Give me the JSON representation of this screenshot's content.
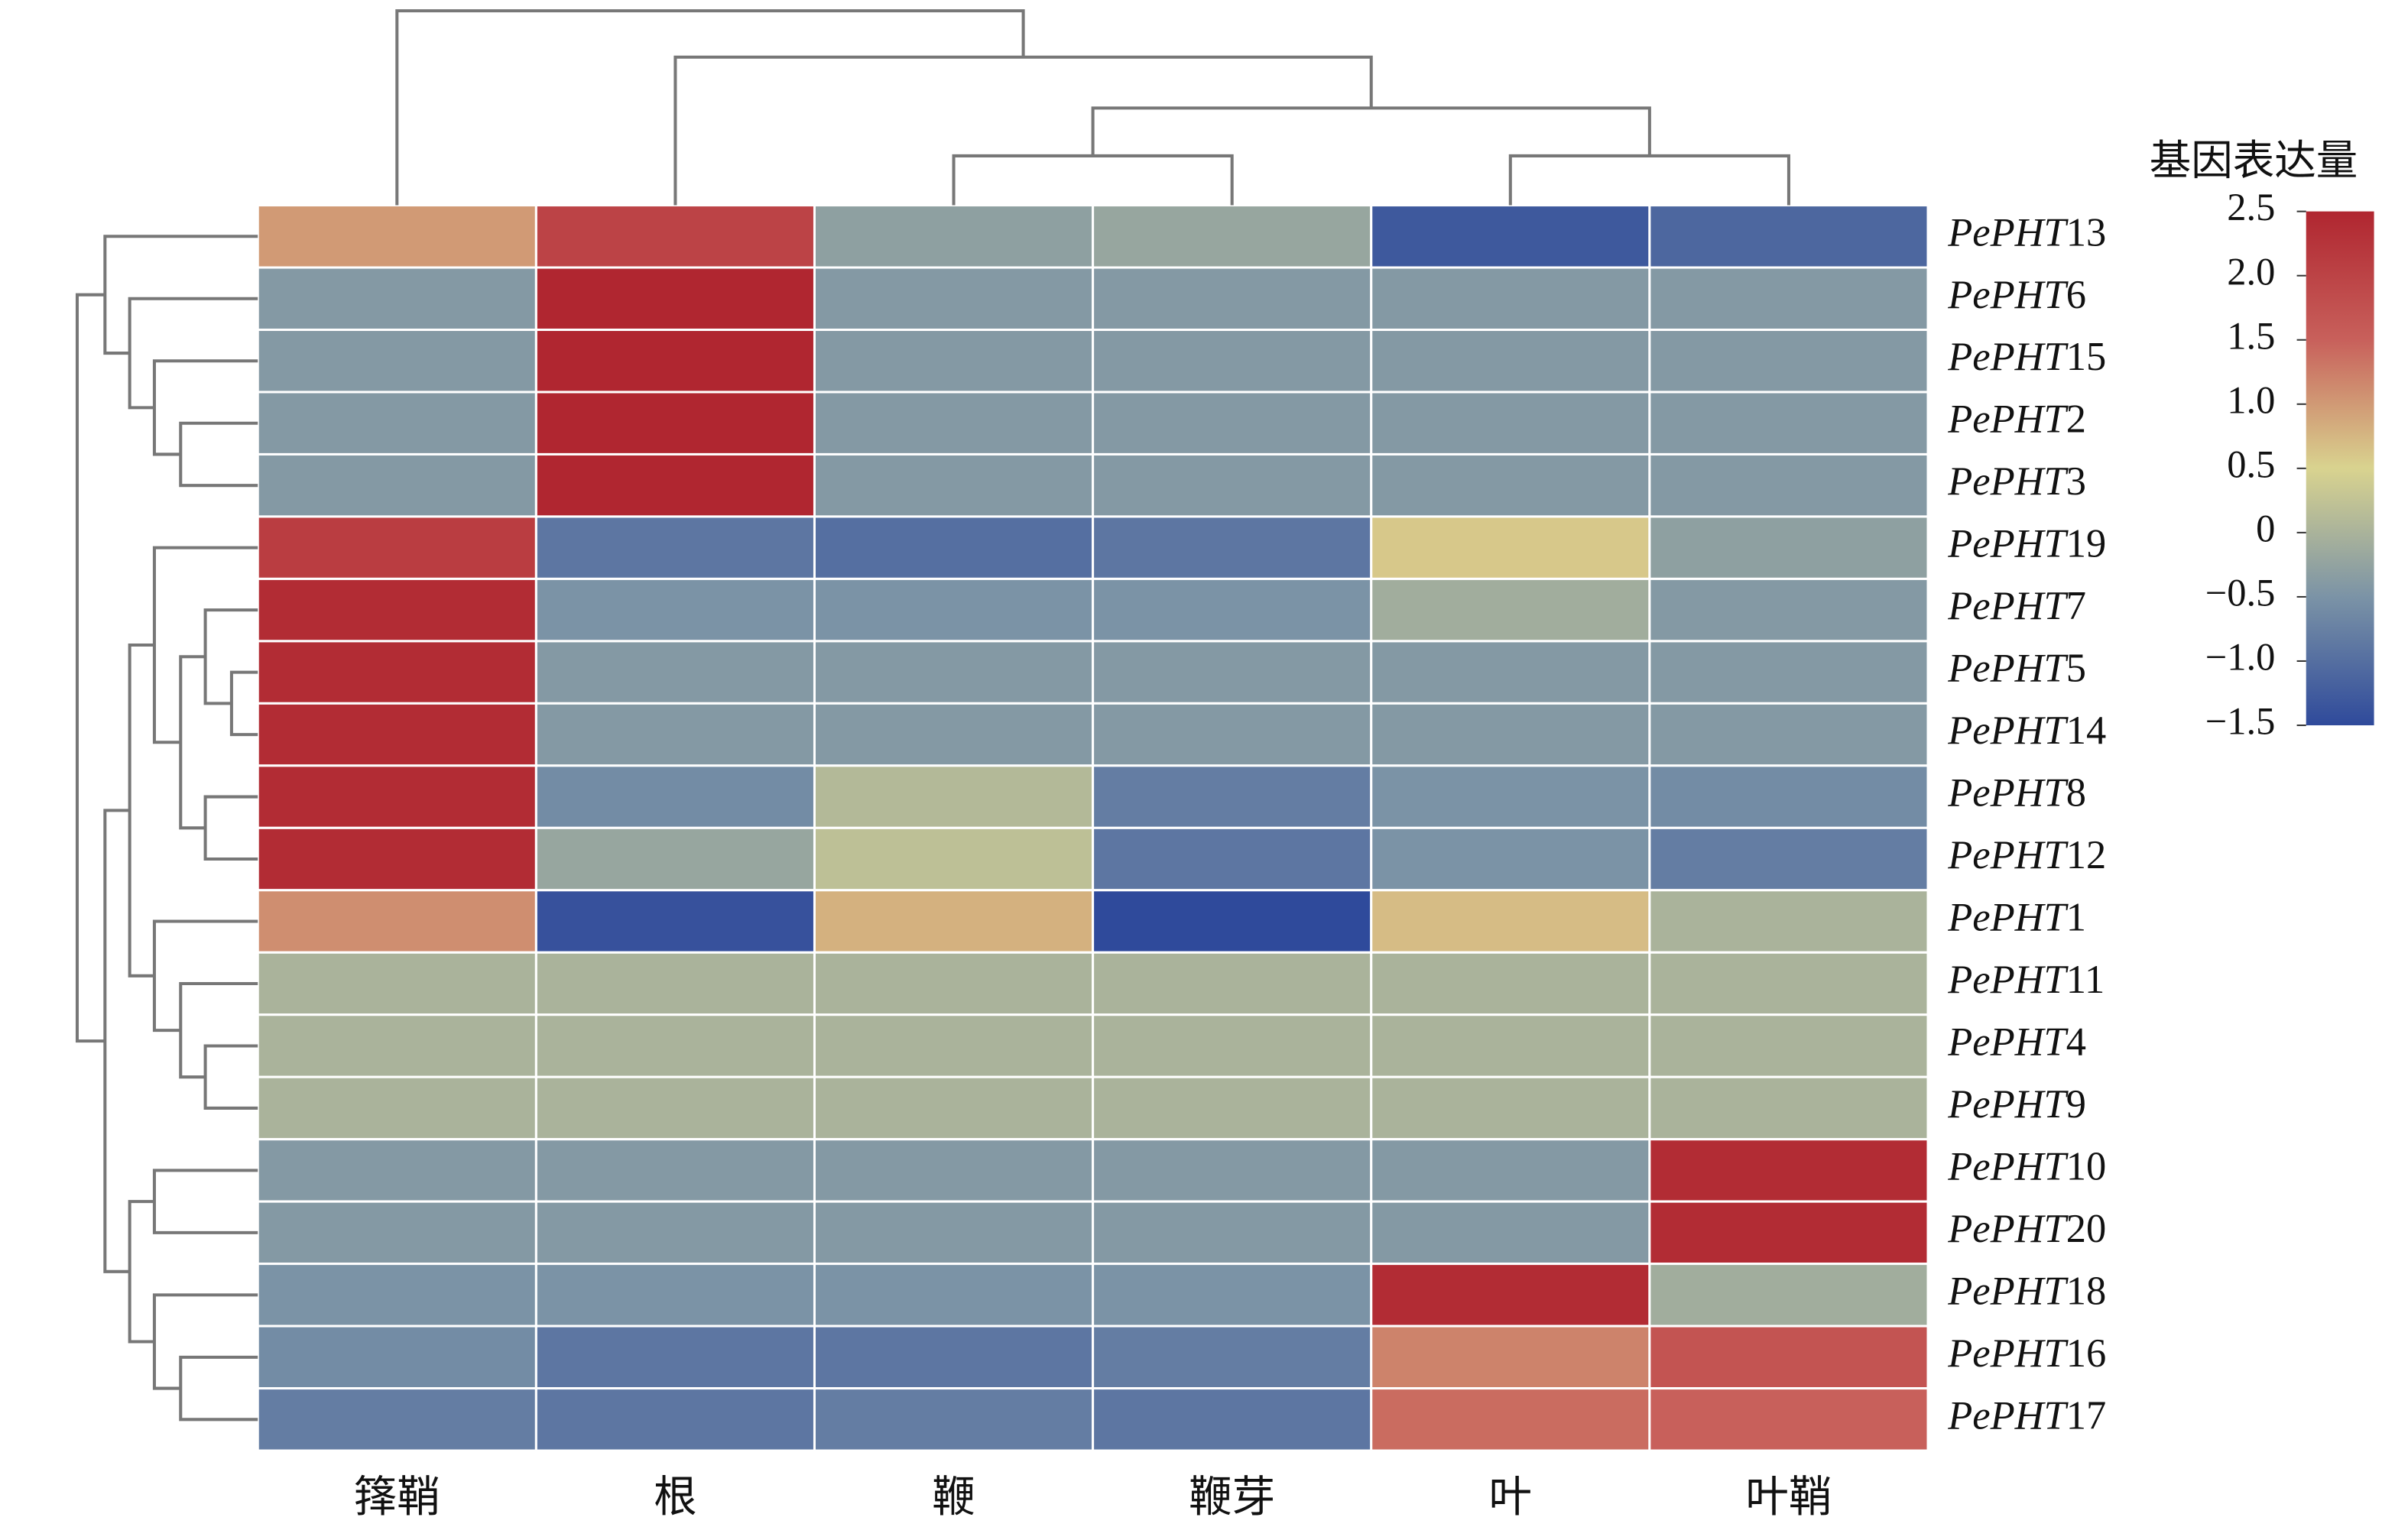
{
  "chart_data": {
    "type": "heatmap",
    "categories": [
      "箨鞘",
      "根",
      "鞭",
      "鞭芽",
      "叶",
      "叶鞘"
    ],
    "rows": [
      "PePHT13",
      "PePHT6",
      "PePHT15",
      "PePHT2",
      "PePHT3",
      "PePHT19",
      "PePHT7",
      "PePHT5",
      "PePHT14",
      "PePHT8",
      "PePHT12",
      "PePHT1",
      "PePHT11",
      "PePHT4",
      "PePHT9",
      "PePHT10",
      "PePHT20",
      "PePHT18",
      "PePHT16",
      "PePHT17"
    ],
    "values": [
      [
        1.0,
        2.0,
        -0.3,
        -0.2,
        -1.3,
        -1.1
      ],
      [
        -0.4,
        2.5,
        -0.4,
        -0.4,
        -0.4,
        -0.4
      ],
      [
        -0.4,
        2.5,
        -0.4,
        -0.4,
        -0.4,
        -0.4
      ],
      [
        -0.4,
        2.5,
        -0.4,
        -0.4,
        -0.4,
        -0.4
      ],
      [
        -0.4,
        2.5,
        -0.4,
        -0.4,
        -0.4,
        -0.4
      ],
      [
        2.1,
        -0.9,
        -1.0,
        -0.9,
        0.6,
        -0.3
      ],
      [
        2.4,
        -0.5,
        -0.5,
        -0.5,
        -0.1,
        -0.4
      ],
      [
        2.4,
        -0.4,
        -0.4,
        -0.4,
        -0.4,
        -0.4
      ],
      [
        2.4,
        -0.4,
        -0.4,
        -0.4,
        -0.4,
        -0.4
      ],
      [
        2.4,
        -0.6,
        0.1,
        -0.8,
        -0.5,
        -0.6
      ],
      [
        2.4,
        -0.2,
        0.2,
        -0.9,
        -0.5,
        -0.8
      ],
      [
        1.1,
        -1.4,
        0.8,
        -1.5,
        0.7,
        0.0
      ],
      [
        0.0,
        0.0,
        0.0,
        0.0,
        0.0,
        0.0
      ],
      [
        0.0,
        0.0,
        0.0,
        0.0,
        0.0,
        0.0
      ],
      [
        0.0,
        0.0,
        0.0,
        0.0,
        0.0,
        0.0
      ],
      [
        -0.4,
        -0.4,
        -0.4,
        -0.4,
        -0.4,
        2.4
      ],
      [
        -0.4,
        -0.4,
        -0.4,
        -0.4,
        -0.4,
        2.4
      ],
      [
        -0.5,
        -0.5,
        -0.5,
        -0.5,
        2.4,
        -0.1
      ],
      [
        -0.6,
        -0.9,
        -0.9,
        -0.8,
        1.2,
        1.7
      ],
      [
        -0.8,
        -0.9,
        -0.8,
        -0.9,
        1.4,
        1.5
      ]
    ],
    "colorscale": [
      "#2f4a9b",
      "#7b93a6",
      "#d9d38f",
      "#c8605b",
      "#b02630"
    ],
    "colorbar_title": "基因表达量",
    "vlim": [
      -1.5,
      2.5
    ],
    "colorbar_ticks": [
      2.5,
      {
        "value": 2.0,
        "label": "2.0"
      },
      1.5,
      {
        "value": 1.0,
        "label": "1.0"
      },
      0.5,
      0,
      {
        "value": -0.5,
        "label": "−0.5"
      },
      {
        "value": -1.0,
        "label": "−1.0"
      },
      {
        "value": -1.5,
        "label": "−1.5"
      }
    ]
  }
}
